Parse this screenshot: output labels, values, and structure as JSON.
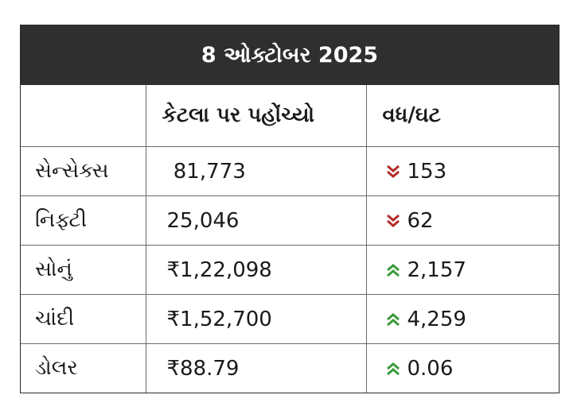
{
  "title": "8 ઓક્ટોબર 2025",
  "headers": [
    "",
    "કેટલા પર પહોંચ્યો",
    "વધ/ઘટ"
  ],
  "rows": [
    {
      "name": "સેન્સેક્સ",
      "value": " 81,773",
      "direction": "down",
      "change": "153"
    },
    {
      "name": "નિફ્ટી",
      "value": "25,046",
      "direction": "down",
      "change": "62"
    },
    {
      "name": "સોનું",
      "value": "₹1,22,098",
      "direction": "up",
      "change": "2,157"
    },
    {
      "name": "ચાંદી",
      "value": "₹1,52,700",
      "direction": "up",
      "change": "4,259"
    },
    {
      "name": "ડોલર",
      "value": "₹88.79",
      "direction": "up",
      "change": "0.06"
    }
  ],
  "colors": {
    "up": "#3a9a3a",
    "down": "#b42a2a",
    "header_bg": "#2f2f2f"
  }
}
